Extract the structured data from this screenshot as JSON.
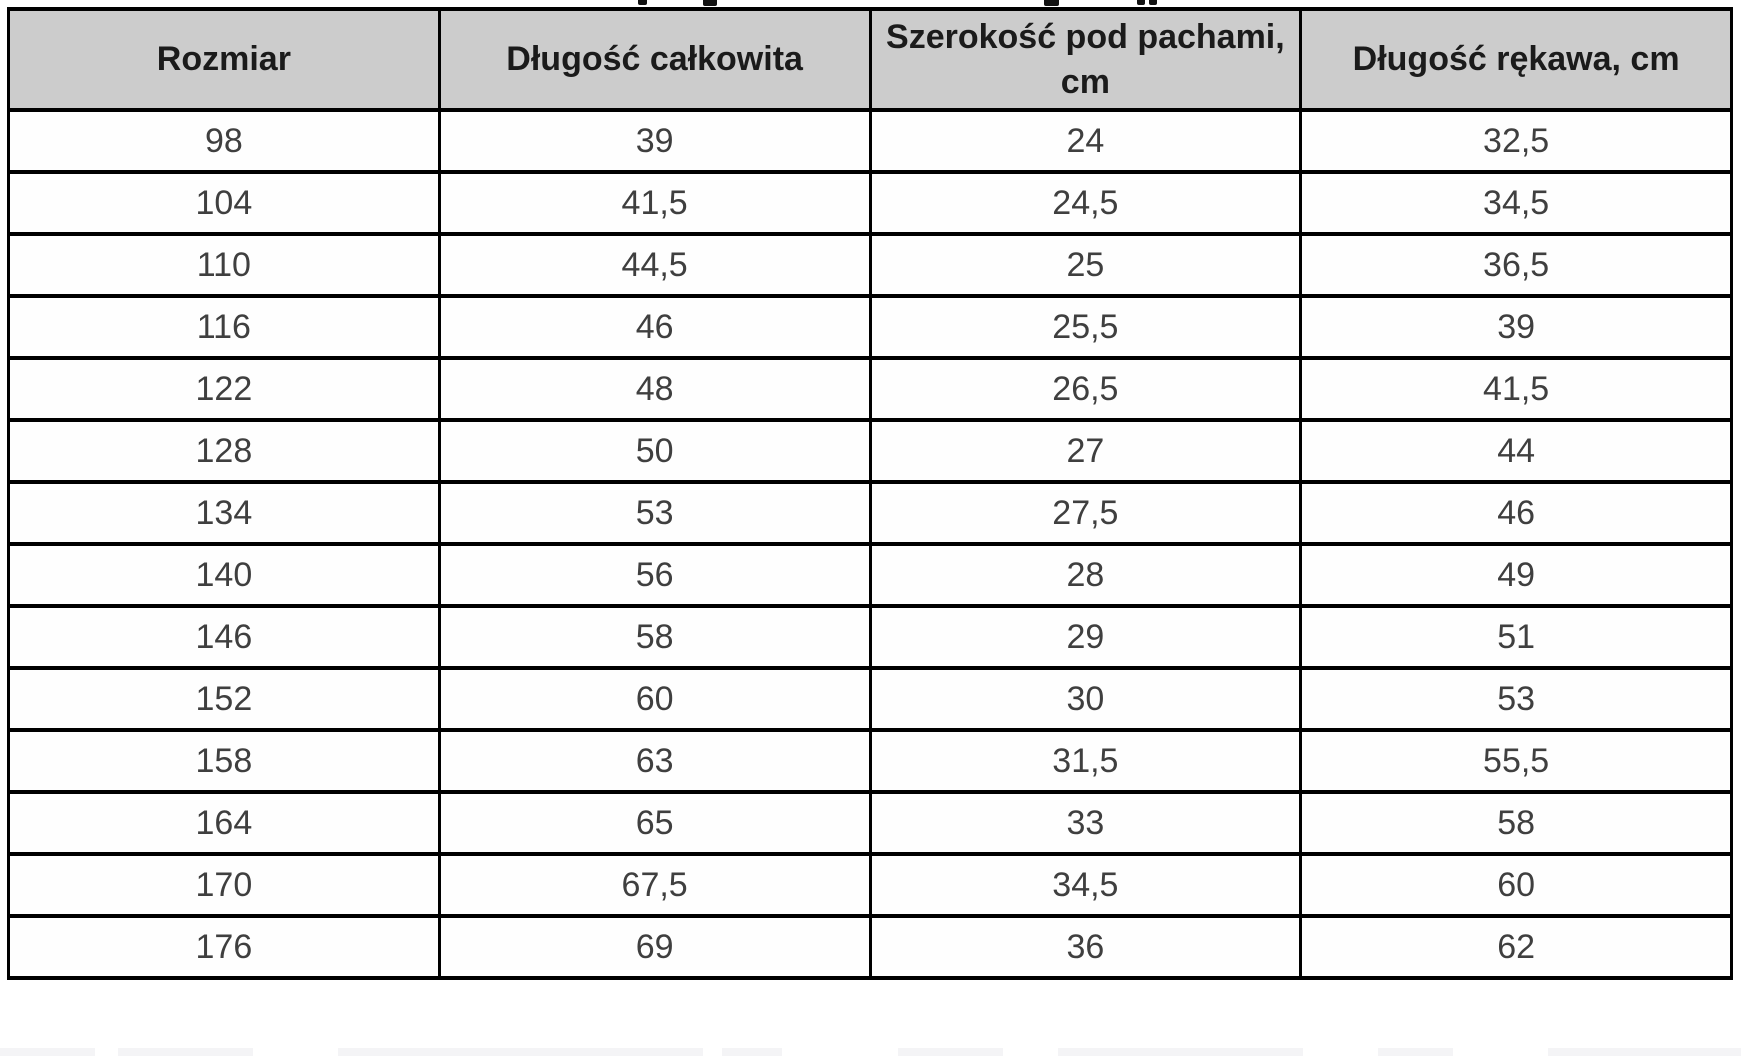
{
  "colors": {
    "page-bg": "#ffffff",
    "header-bg": "#cccccc",
    "border": "#000000",
    "header-text": "#1b1b1b",
    "body-text": "#3f3f3f",
    "cell-bg": "#fefefe"
  },
  "table": {
    "headers": [
      "Rozmiar",
      "Długość całkowita",
      "Szerokość pod pachami,\ncm",
      "Długość rękawa, cm"
    ],
    "rows": [
      [
        "98",
        "39",
        "24",
        "32,5"
      ],
      [
        "104",
        "41,5",
        "24,5",
        "34,5"
      ],
      [
        "110",
        "44,5",
        "25",
        "36,5"
      ],
      [
        "116",
        "46",
        "25,5",
        "39"
      ],
      [
        "122",
        "48",
        "26,5",
        "41,5"
      ],
      [
        "128",
        "50",
        "27",
        "44"
      ],
      [
        "134",
        "53",
        "27,5",
        "46"
      ],
      [
        "140",
        "56",
        "28",
        "49"
      ],
      [
        "146",
        "58",
        "29",
        "51"
      ],
      [
        "152",
        "60",
        "30",
        "53"
      ],
      [
        "158",
        "63",
        "31,5",
        "55,5"
      ],
      [
        "164",
        "65",
        "33",
        "58"
      ],
      [
        "170",
        "67,5",
        "34,5",
        "60"
      ],
      [
        "176",
        "69",
        "36",
        "62"
      ]
    ]
  }
}
